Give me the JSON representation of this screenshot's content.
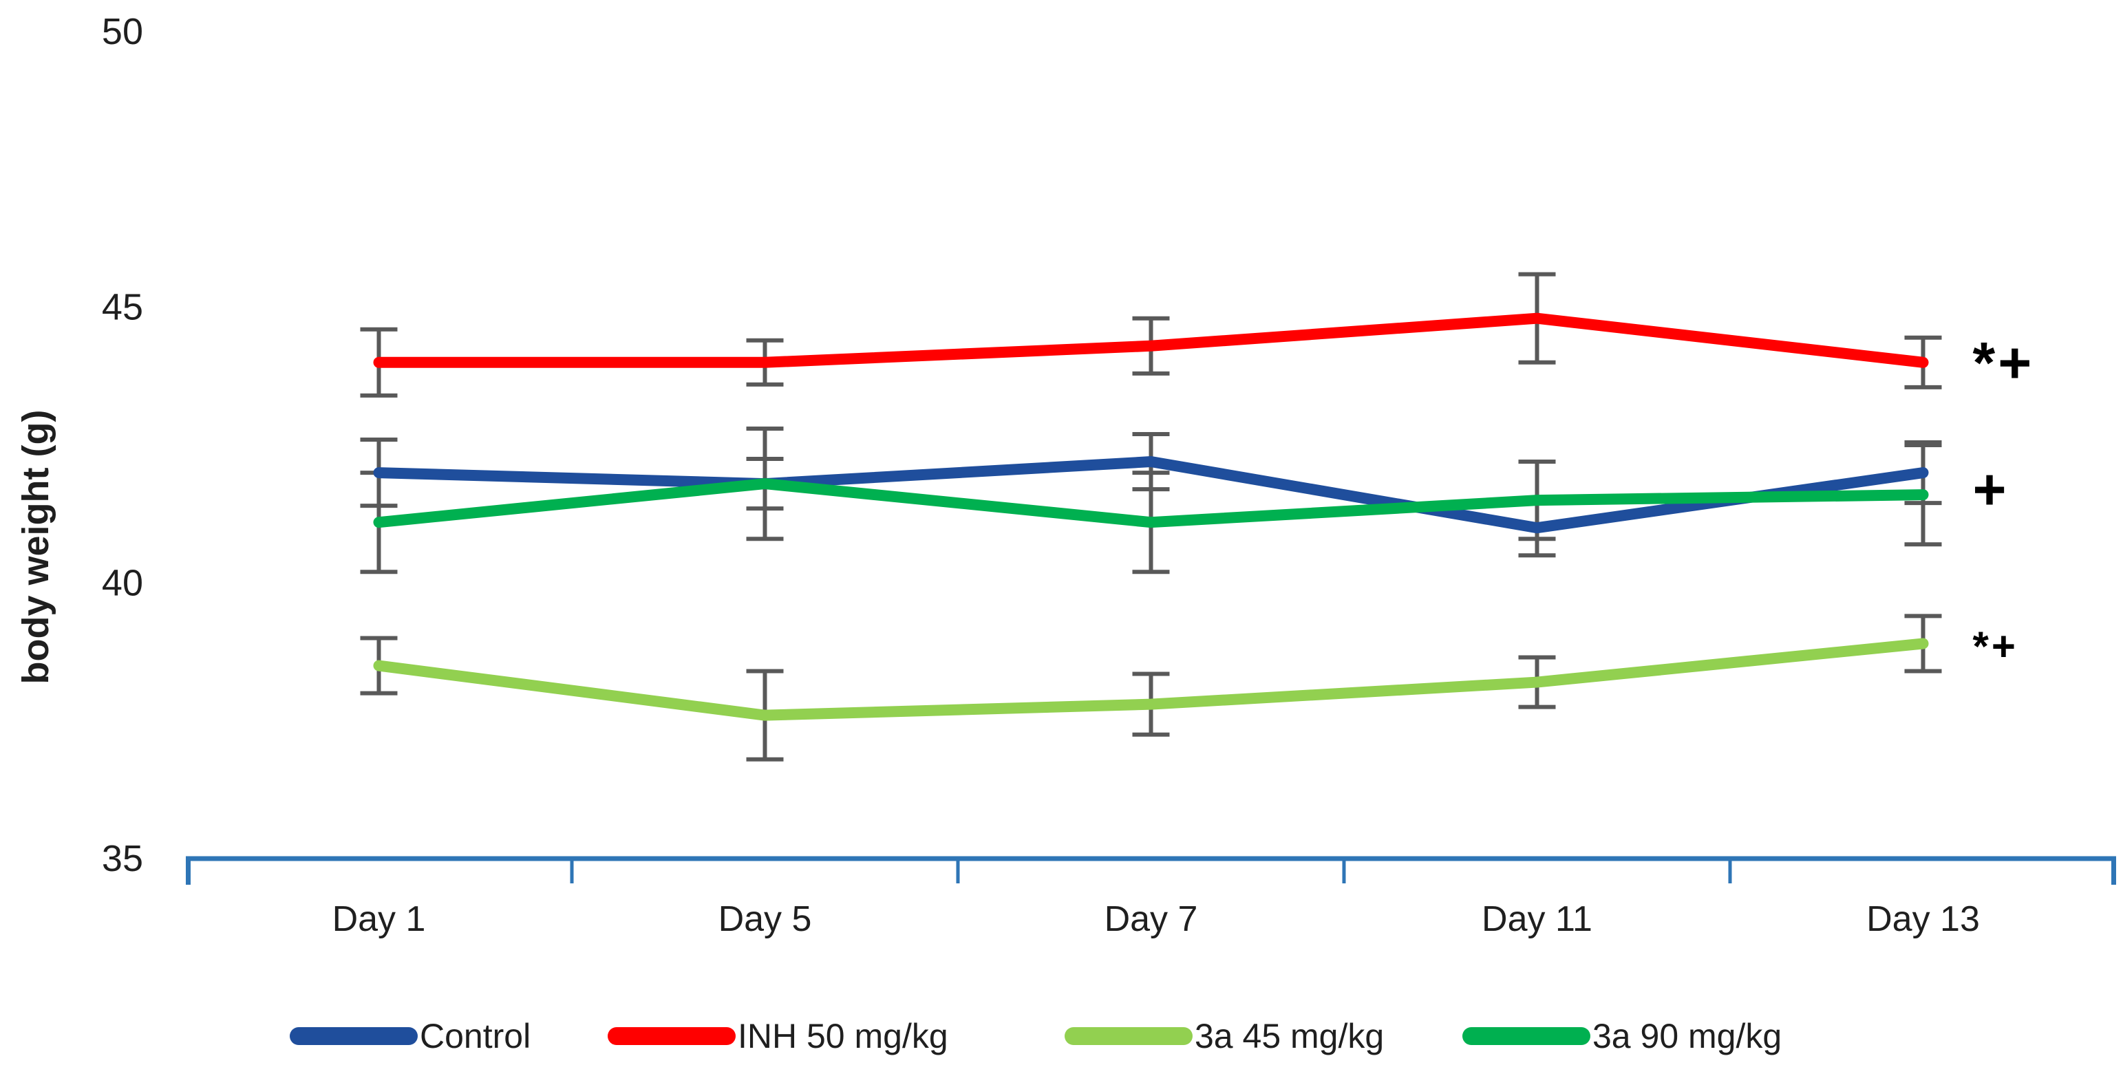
{
  "figure": {
    "background": "#FFFFFF",
    "axis_color": "#2E75B6",
    "error_bar_color": "#595959",
    "text_color": "#1F1F1F"
  },
  "chart_data": {
    "type": "line",
    "title": "",
    "xlabel": "",
    "ylabel": "body weight (g)",
    "categories": [
      "Day 1",
      "Day 5",
      "Day 7",
      "Day 11",
      "Day 13"
    ],
    "ylim": [
      35,
      50
    ],
    "yticks": [
      35,
      40,
      45,
      50
    ],
    "grid": false,
    "legend_position": "bottom",
    "series": [
      {
        "name": "Control",
        "color": "#1F4E9C",
        "values": [
          42.0,
          41.8,
          42.2,
          41.0,
          42.0
        ],
        "error": [
          0.6,
          0.45,
          0.5,
          0.5,
          0.55
        ]
      },
      {
        "name": "INH 50 mg/kg",
        "color": "#FF0000",
        "values": [
          44.0,
          44.0,
          44.3,
          44.8,
          44.0
        ],
        "error": [
          0.6,
          0.4,
          0.5,
          0.8,
          0.45
        ]
      },
      {
        "name": "3a 45 mg/kg",
        "color": "#92D050",
        "values": [
          38.5,
          37.6,
          37.8,
          38.2,
          38.9
        ],
        "error": [
          0.5,
          0.8,
          0.55,
          0.45,
          0.5
        ]
      },
      {
        "name": "3a 90 mg/kg",
        "color": "#00B050",
        "values": [
          41.1,
          41.8,
          41.1,
          41.5,
          41.6
        ],
        "error": [
          0.9,
          1.0,
          0.9,
          0.7,
          0.9
        ]
      }
    ],
    "annotations": [
      {
        "text": "*+",
        "value": 44.0,
        "size": "large"
      },
      {
        "text": "+",
        "value": 41.7,
        "size": "large"
      },
      {
        "text": "*+",
        "value": 38.85,
        "size": "small"
      }
    ]
  }
}
